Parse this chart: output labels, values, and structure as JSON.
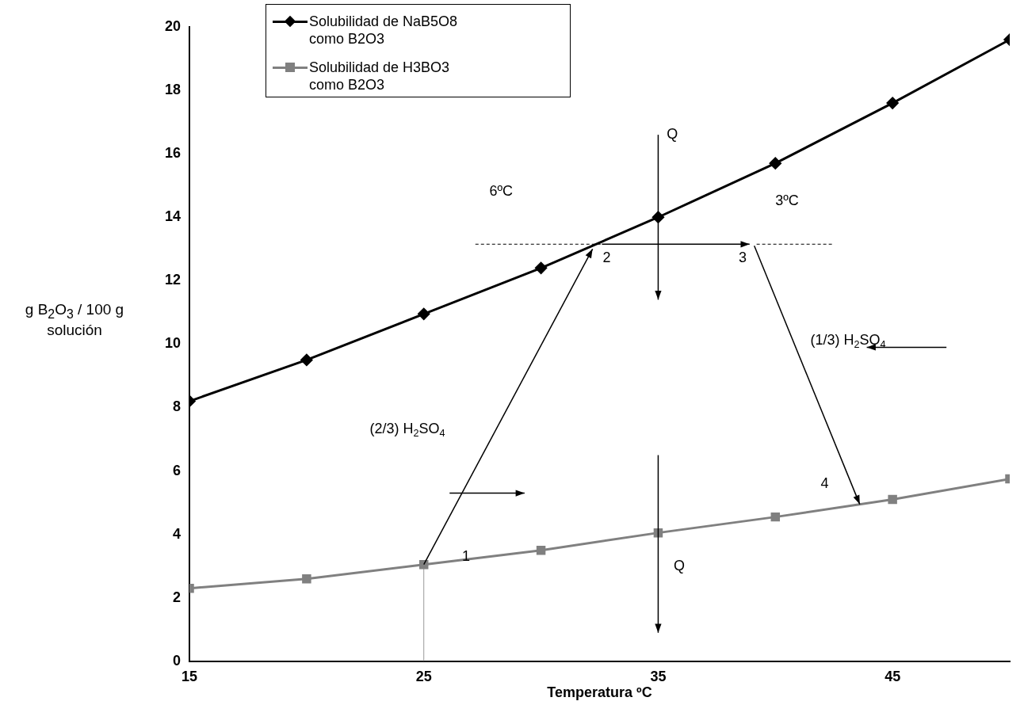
{
  "chart_data": {
    "type": "line",
    "xlabel": "Temperatura ºC",
    "ylabel": "g B$_{2}$O$_{3}$ / 100 g  solución",
    "x": [
      15,
      20,
      25,
      30,
      35,
      40,
      45,
      50
    ],
    "series": [
      {
        "name": "Solubilidad de NaB5O8 como B2O3",
        "color": "#000000",
        "marker": "diamond",
        "values": [
          8.2,
          9.5,
          10.95,
          12.4,
          14.0,
          15.7,
          17.6,
          19.6
        ]
      },
      {
        "name": "Solubilidad de H3BO3 como B2O3",
        "color": "#808080",
        "marker": "square",
        "values": [
          2.3,
          2.6,
          3.05,
          3.5,
          4.05,
          4.55,
          5.1,
          5.75
        ]
      },
      {
        "color": "#999999",
        "marker": "none",
        "x": [
          25,
          25
        ],
        "values": [
          0,
          3.05
        ]
      }
    ],
    "xlim": [
      15,
      50
    ],
    "xticks": [
      15,
      25,
      35,
      45
    ],
    "ylim": [
      0,
      20
    ],
    "yticks": [
      0,
      2,
      4,
      6,
      8,
      10,
      12,
      14,
      16,
      18,
      20
    ],
    "grid": false,
    "legend": "top left",
    "annotations": [
      "Q",
      "Q",
      "6ºC",
      "3ºC",
      "2",
      {
        "text": "3",
        "x": 43.6,
        "y": 4.95
      },
      "1",
      "4",
      "(2/3) H$_{2}$SO$_{4}$",
      "(1/3) H$_{2}$SO$_{4}$"
    ]
  }
}
